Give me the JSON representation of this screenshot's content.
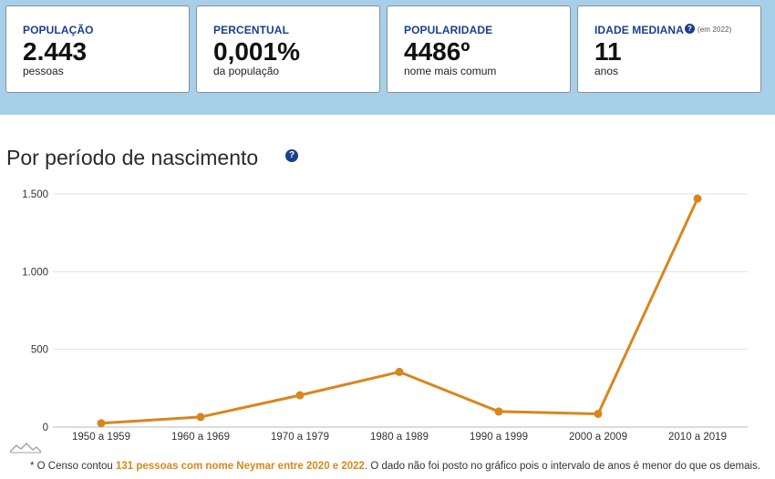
{
  "cards": [
    {
      "label": "POPULAÇÃO",
      "value": "2.443",
      "unit": "pessoas"
    },
    {
      "label": "PERCENTUAL",
      "value": "0,001%",
      "unit": "da população"
    },
    {
      "label": "POPULARIDADE",
      "value": "4486º",
      "unit": "nome mais comum"
    },
    {
      "label": "IDADE MEDIANA",
      "help": "?",
      "note": "(em 2022)",
      "value": "11",
      "unit": "anos"
    }
  ],
  "section": {
    "title": "Por período de nascimento",
    "help": "?"
  },
  "colors": {
    "band": "#a7cfe9",
    "line": "#d9861c",
    "label_blue": "#1b3e8f"
  },
  "chart_data": {
    "type": "line",
    "categories": [
      "1950 a 1959",
      "1960 a 1969",
      "1970 a 1979",
      "1980 a 1989",
      "1990 a 1999",
      "2000 a 2009",
      "2010 a 2019"
    ],
    "values": [
      25,
      65,
      205,
      355,
      100,
      85,
      1470
    ],
    "ylim": [
      0,
      1500
    ],
    "yticks": [
      0,
      500,
      1000,
      1500
    ],
    "ytick_labels": [
      "0",
      "500",
      "1.000",
      "1.500"
    ],
    "grid": true,
    "title": "",
    "xlabel": "",
    "ylabel": ""
  },
  "footnote": {
    "prefix": "* O Censo contou ",
    "highlight": "131 pessoas com nome Neymar entre 2020 e 2022",
    "suffix": ". O dado não foi posto no gráfico pois o intervalo de anos é menor do que os demais."
  }
}
